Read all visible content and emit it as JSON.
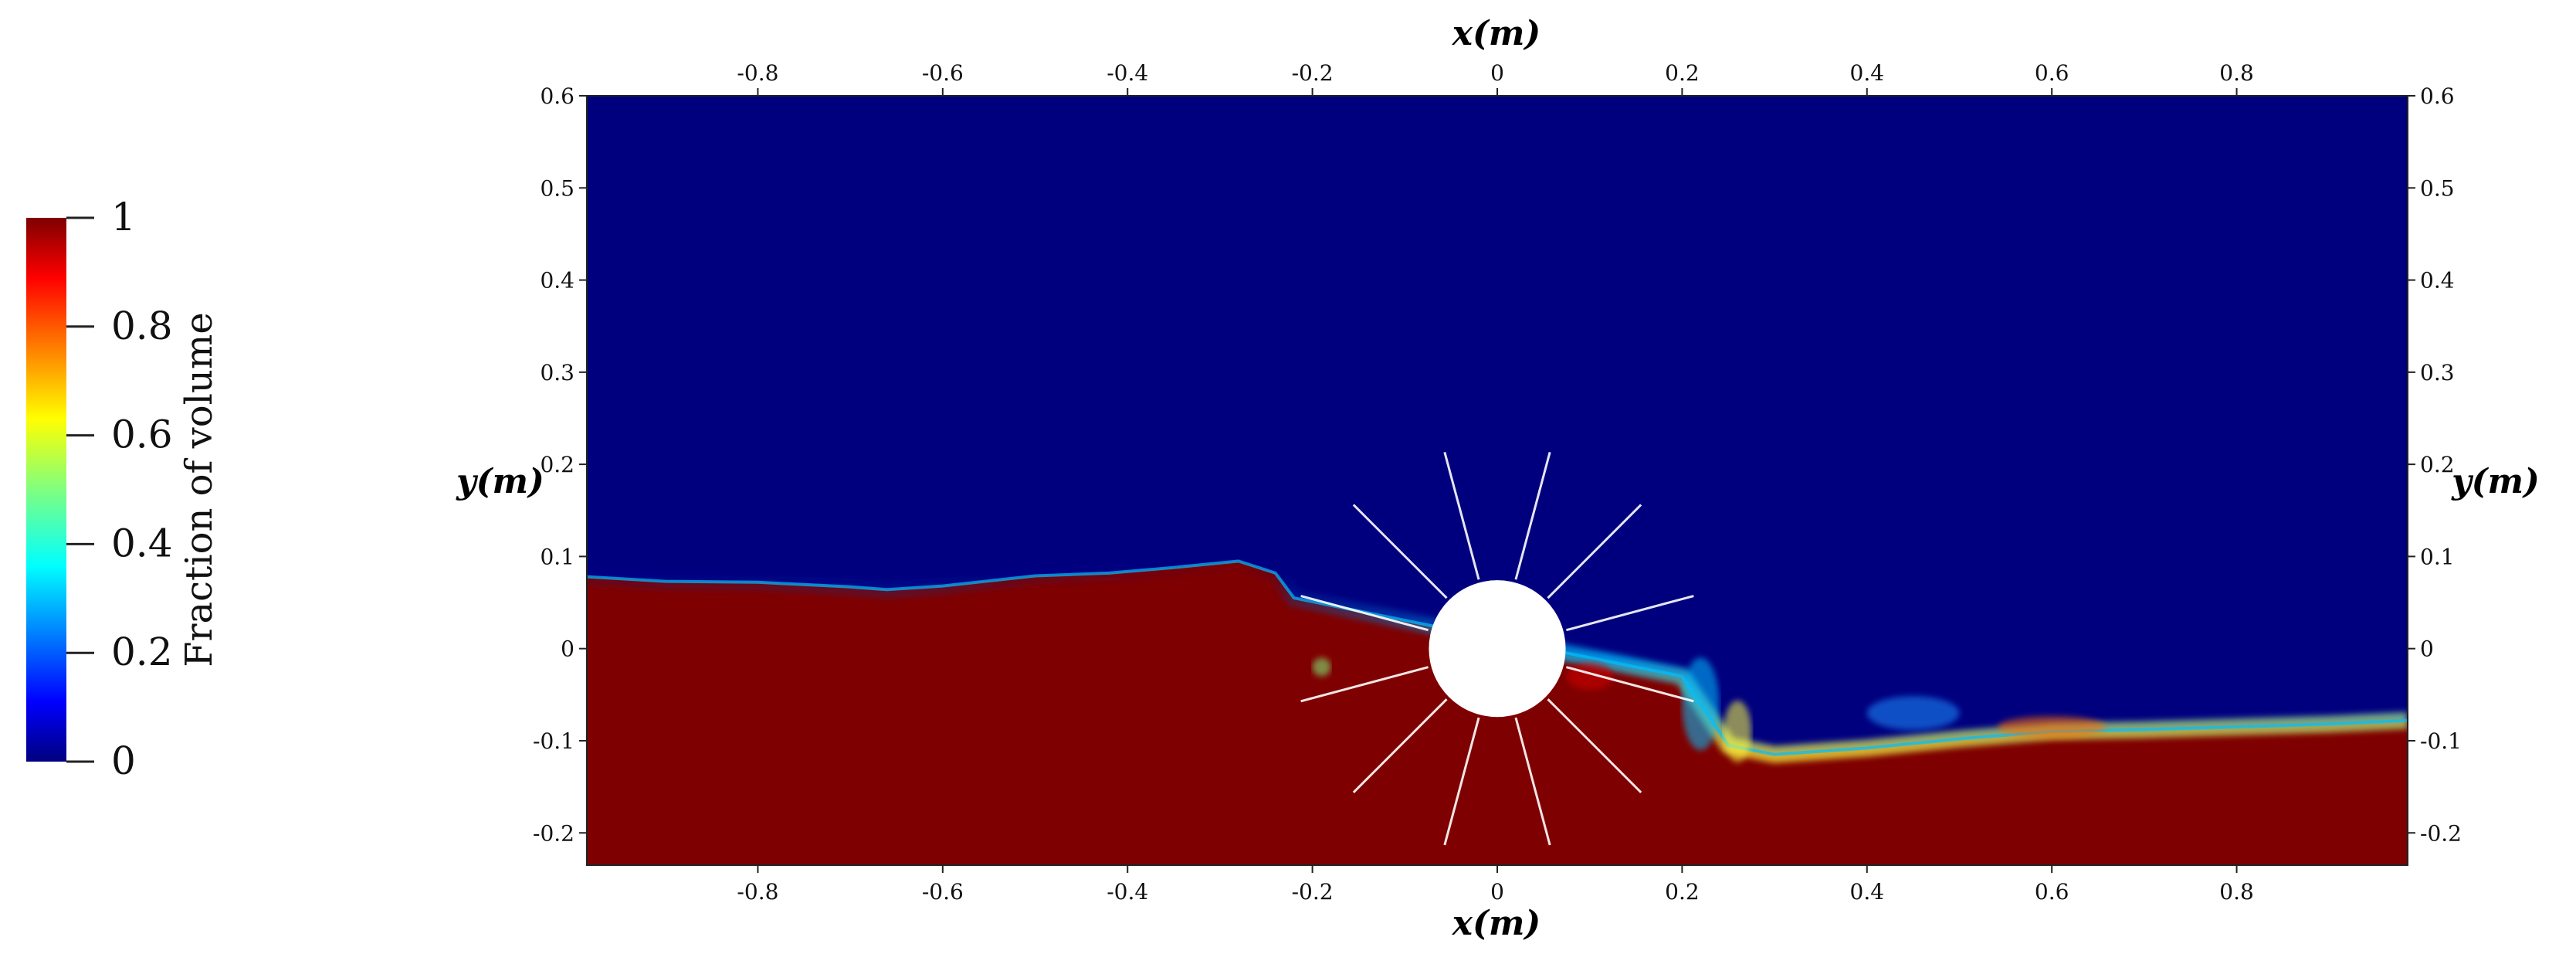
{
  "chart_data": {
    "type": "heatmap",
    "title": "",
    "xlabel": "x(m)",
    "ylabel": "y(m)",
    "xlim": [
      -0.985,
      0.985
    ],
    "ylim": [
      -0.235,
      0.6
    ],
    "x_ticks": [
      -0.8,
      -0.6,
      -0.4,
      -0.2,
      0,
      0.2,
      0.4,
      0.6,
      0.8
    ],
    "x_tick_labels": [
      "-0.8",
      "-0.6",
      "-0.4",
      "-0.2",
      "0",
      "0.2",
      "0.4",
      "0.6",
      "0.8"
    ],
    "y_ticks": [
      -0.2,
      -0.1,
      0,
      0.1,
      0.2,
      0.3,
      0.4,
      0.5,
      0.6
    ],
    "y_tick_labels": [
      "-0.2",
      "-0.1",
      "0",
      "0.1",
      "0.2",
      "0.3",
      "0.4",
      "0.5",
      "0.6"
    ],
    "colorbar": {
      "title": "Fraction of volume",
      "range": [
        0,
        1
      ],
      "ticks": [
        0,
        0.2,
        0.4,
        0.6,
        0.8,
        1
      ],
      "tick_labels": [
        "0",
        "0.2",
        "0.4",
        "0.6",
        "0.8",
        "1"
      ],
      "colormap": "jet"
    },
    "colors": {
      "water": "#7f0000",
      "air": "#00007f",
      "interface": "#00bfff"
    },
    "free_surface": {
      "x": [
        -0.985,
        -0.9,
        -0.8,
        -0.7,
        -0.66,
        -0.6,
        -0.5,
        -0.42,
        -0.35,
        -0.28,
        -0.24,
        -0.22,
        0.2,
        0.22,
        0.25,
        0.3,
        0.4,
        0.5,
        0.6,
        0.7,
        0.8,
        0.9,
        0.985
      ],
      "y": [
        0.078,
        0.073,
        0.072,
        0.067,
        0.064,
        0.068,
        0.079,
        0.082,
        0.088,
        0.095,
        0.082,
        0.055,
        -0.03,
        -0.06,
        -0.105,
        -0.115,
        -0.108,
        -0.098,
        -0.09,
        -0.088,
        -0.085,
        -0.082,
        -0.078
      ]
    },
    "cylinder": {
      "center": [
        0,
        0
      ],
      "radius": 0.074
    },
    "overset_grid": {
      "radius": 0.22,
      "spoke_angles_deg": [
        15,
        45,
        75,
        105,
        135,
        165,
        195,
        225,
        255,
        285,
        315,
        345
      ]
    }
  }
}
